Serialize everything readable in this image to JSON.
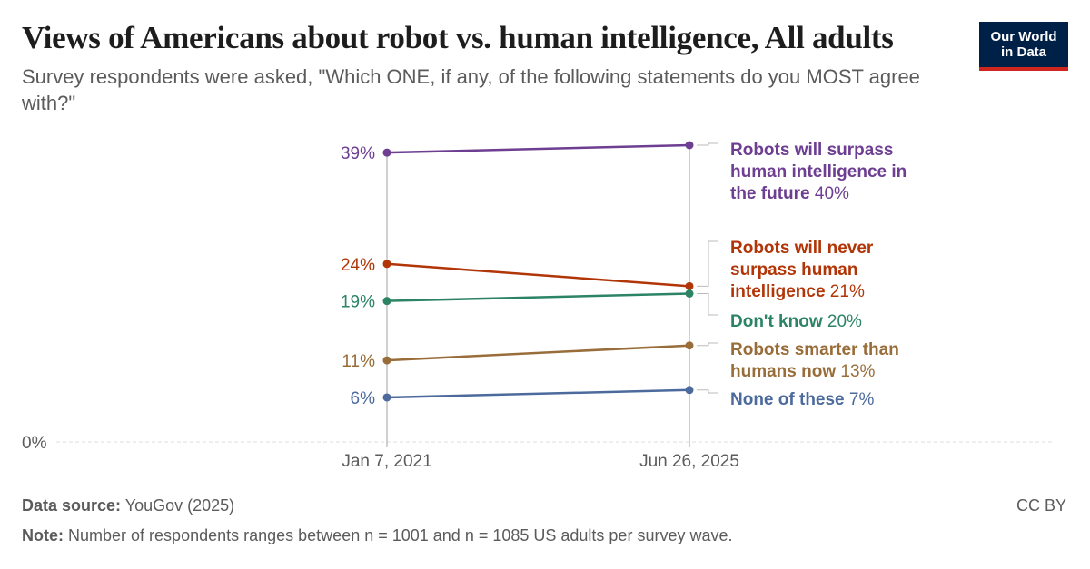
{
  "header": {
    "title": "Views of Americans about robot vs. human intelligence, All adults",
    "subtitle": "Survey respondents were asked, \"Which ONE, if any, of the following statements do you MOST agree with?\"",
    "logo_line1": "Our World",
    "logo_line2": "in Data"
  },
  "footer": {
    "source_label": "Data source:",
    "source_value": "YouGov (2025)",
    "note_label": "Note:",
    "note_value": "Number of respondents ranges between n = 1001 and n = 1085 US adults per survey wave.",
    "license": "CC BY"
  },
  "chart_data": {
    "type": "line",
    "x": [
      "Jan 7, 2021",
      "Jun 26, 2025"
    ],
    "y_unit": "%",
    "ylim": [
      0,
      40
    ],
    "y_baseline_label": "0%",
    "series": [
      {
        "name": "Robots will surpass human intelligence in the future",
        "label_lines": [
          "Robots will surpass",
          "human intelligence in",
          "the future"
        ],
        "values": [
          39,
          40
        ],
        "start_label": "39%",
        "end_label": "40%",
        "color": "#6d3e91"
      },
      {
        "name": "Robots will never surpass human intelligence",
        "label_lines": [
          "Robots will never",
          "surpass human",
          "intelligence"
        ],
        "values": [
          24,
          21
        ],
        "start_label": "24%",
        "end_label": "21%",
        "color": "#b13507"
      },
      {
        "name": "Don't know",
        "label_lines": [
          "Don't know"
        ],
        "values": [
          19,
          20
        ],
        "start_label": "19%",
        "end_label": "20%",
        "color": "#2c8465"
      },
      {
        "name": "Robots smarter than humans now",
        "label_lines": [
          "Robots smarter than",
          "humans now"
        ],
        "values": [
          11,
          13
        ],
        "start_label": "11%",
        "end_label": "13%",
        "color": "#996d39"
      },
      {
        "name": "None of these",
        "label_lines": [
          "None of these"
        ],
        "values": [
          6,
          7
        ],
        "start_label": "6%",
        "end_label": "7%",
        "color": "#4c6a9c"
      }
    ]
  }
}
